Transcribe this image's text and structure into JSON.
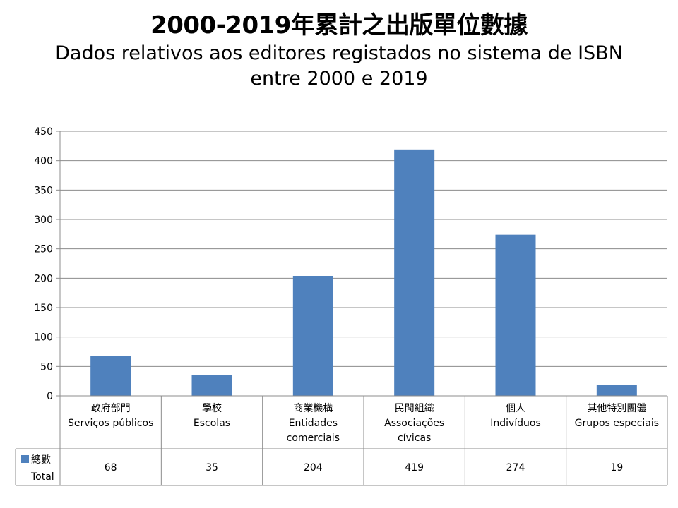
{
  "title": "2000-2019年累計之出版單位數據",
  "subtitle": "Dados relativos aos editores registados no sistema de ISBN entre 2000 e 2019",
  "chart_data": {
    "type": "bar",
    "categories": [
      [
        "政府部門",
        "Serviços públicos"
      ],
      [
        "學校",
        "Escolas"
      ],
      [
        "商業機構",
        "Entidades",
        "comerciais"
      ],
      [
        "民間組織",
        "Associações",
        "cívicas"
      ],
      [
        "個人",
        "Indivíduos"
      ],
      [
        "其他特別團體",
        "Grupos especiais"
      ]
    ],
    "series": [
      {
        "name": "總數 Total",
        "values": [
          68,
          35,
          204,
          419,
          274,
          19
        ],
        "color": "#4f81bd"
      }
    ],
    "legend": {
      "line1": "總數",
      "line2": "Total"
    },
    "ylim": [
      0,
      450
    ],
    "yticks": [
      0,
      50,
      100,
      150,
      200,
      250,
      300,
      350,
      400,
      450
    ],
    "grid": true,
    "data_table": true
  }
}
